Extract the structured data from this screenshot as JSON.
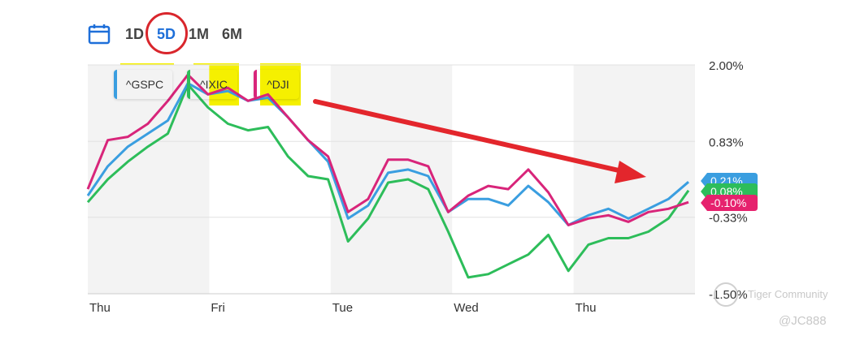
{
  "range": {
    "buttons": [
      "1D",
      "5D",
      "1M",
      "6M"
    ],
    "active": "5D"
  },
  "legend": [
    {
      "label": "^GSPC",
      "color": "#3a9ee0"
    },
    {
      "label": "^IXIC",
      "color": "#2dbd5a"
    },
    {
      "label": "^DJI",
      "color": "#d8257a"
    }
  ],
  "badges": [
    {
      "text": "0.21%",
      "color": "#3a9ee0"
    },
    {
      "text": "0.08%",
      "color": "#2dbd5a"
    },
    {
      "text": "-0.10%",
      "color": "#e6226e"
    }
  ],
  "watermark": {
    "line1": "Tiger Community",
    "line2": "@JC888"
  },
  "chart_data": {
    "type": "line",
    "x_labels": [
      "Thu",
      "Fri",
      "Tue",
      "Wed",
      "Thu"
    ],
    "y_ticks": [
      "2.00%",
      "0.83%",
      "-0.33%",
      "-1.50%"
    ],
    "ylim": [
      -1.5,
      2.0
    ],
    "grid": true,
    "series": [
      {
        "name": "^GSPC",
        "color": "#3a9ee0",
        "values": [
          0.0,
          0.45,
          0.75,
          0.95,
          1.15,
          1.72,
          1.55,
          1.6,
          1.45,
          1.5,
          1.2,
          0.85,
          0.52,
          -0.35,
          -0.15,
          0.35,
          0.4,
          0.3,
          -0.25,
          -0.05,
          -0.05,
          -0.15,
          0.15,
          -0.1,
          -0.45,
          -0.3,
          -0.2,
          -0.35,
          -0.2,
          -0.05,
          0.21
        ]
      },
      {
        "name": "^IXIC",
        "color": "#2dbd5a",
        "values": [
          -0.1,
          0.25,
          0.52,
          0.75,
          0.95,
          1.7,
          1.35,
          1.1,
          1.0,
          1.05,
          0.6,
          0.3,
          0.25,
          -0.7,
          -0.35,
          0.2,
          0.25,
          0.1,
          -0.55,
          -1.25,
          -1.2,
          -1.05,
          -0.9,
          -0.6,
          -1.15,
          -0.75,
          -0.65,
          -0.65,
          -0.55,
          -0.35,
          0.08
        ]
      },
      {
        "name": "^DJI",
        "color": "#d8257a",
        "values": [
          0.1,
          0.85,
          0.9,
          1.1,
          1.45,
          1.85,
          1.55,
          1.65,
          1.45,
          1.55,
          1.2,
          0.85,
          0.6,
          -0.25,
          -0.05,
          0.55,
          0.55,
          0.45,
          -0.25,
          0.0,
          0.15,
          0.1,
          0.4,
          0.05,
          -0.45,
          -0.35,
          -0.3,
          -0.4,
          -0.25,
          -0.2,
          -0.1
        ]
      }
    ]
  }
}
